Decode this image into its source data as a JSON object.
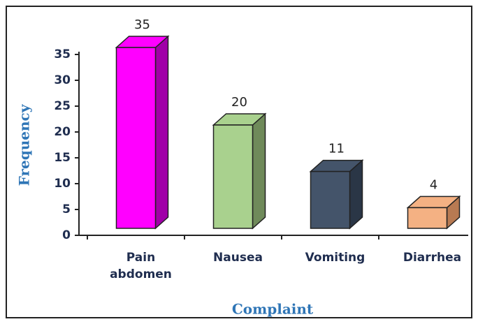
{
  "chart_data": {
    "type": "bar3d",
    "x_label": "Complaint",
    "y_label": "Frequency",
    "categories": [
      "Pain abdomen",
      "Nausea",
      "Vomiting",
      "Diarrhea"
    ],
    "values": [
      35,
      20,
      11,
      4
    ],
    "colors": [
      "#ff00ff",
      "#a9d18e",
      "#44546a",
      "#f4b183"
    ],
    "side_colors": [
      "#a000a8",
      "#6f8a5a",
      "#2a3646",
      "#b87a52"
    ],
    "ylim": [
      0,
      35
    ],
    "yticks": [
      0,
      5,
      10,
      15,
      20,
      25,
      30,
      35
    ],
    "grid": false
  }
}
